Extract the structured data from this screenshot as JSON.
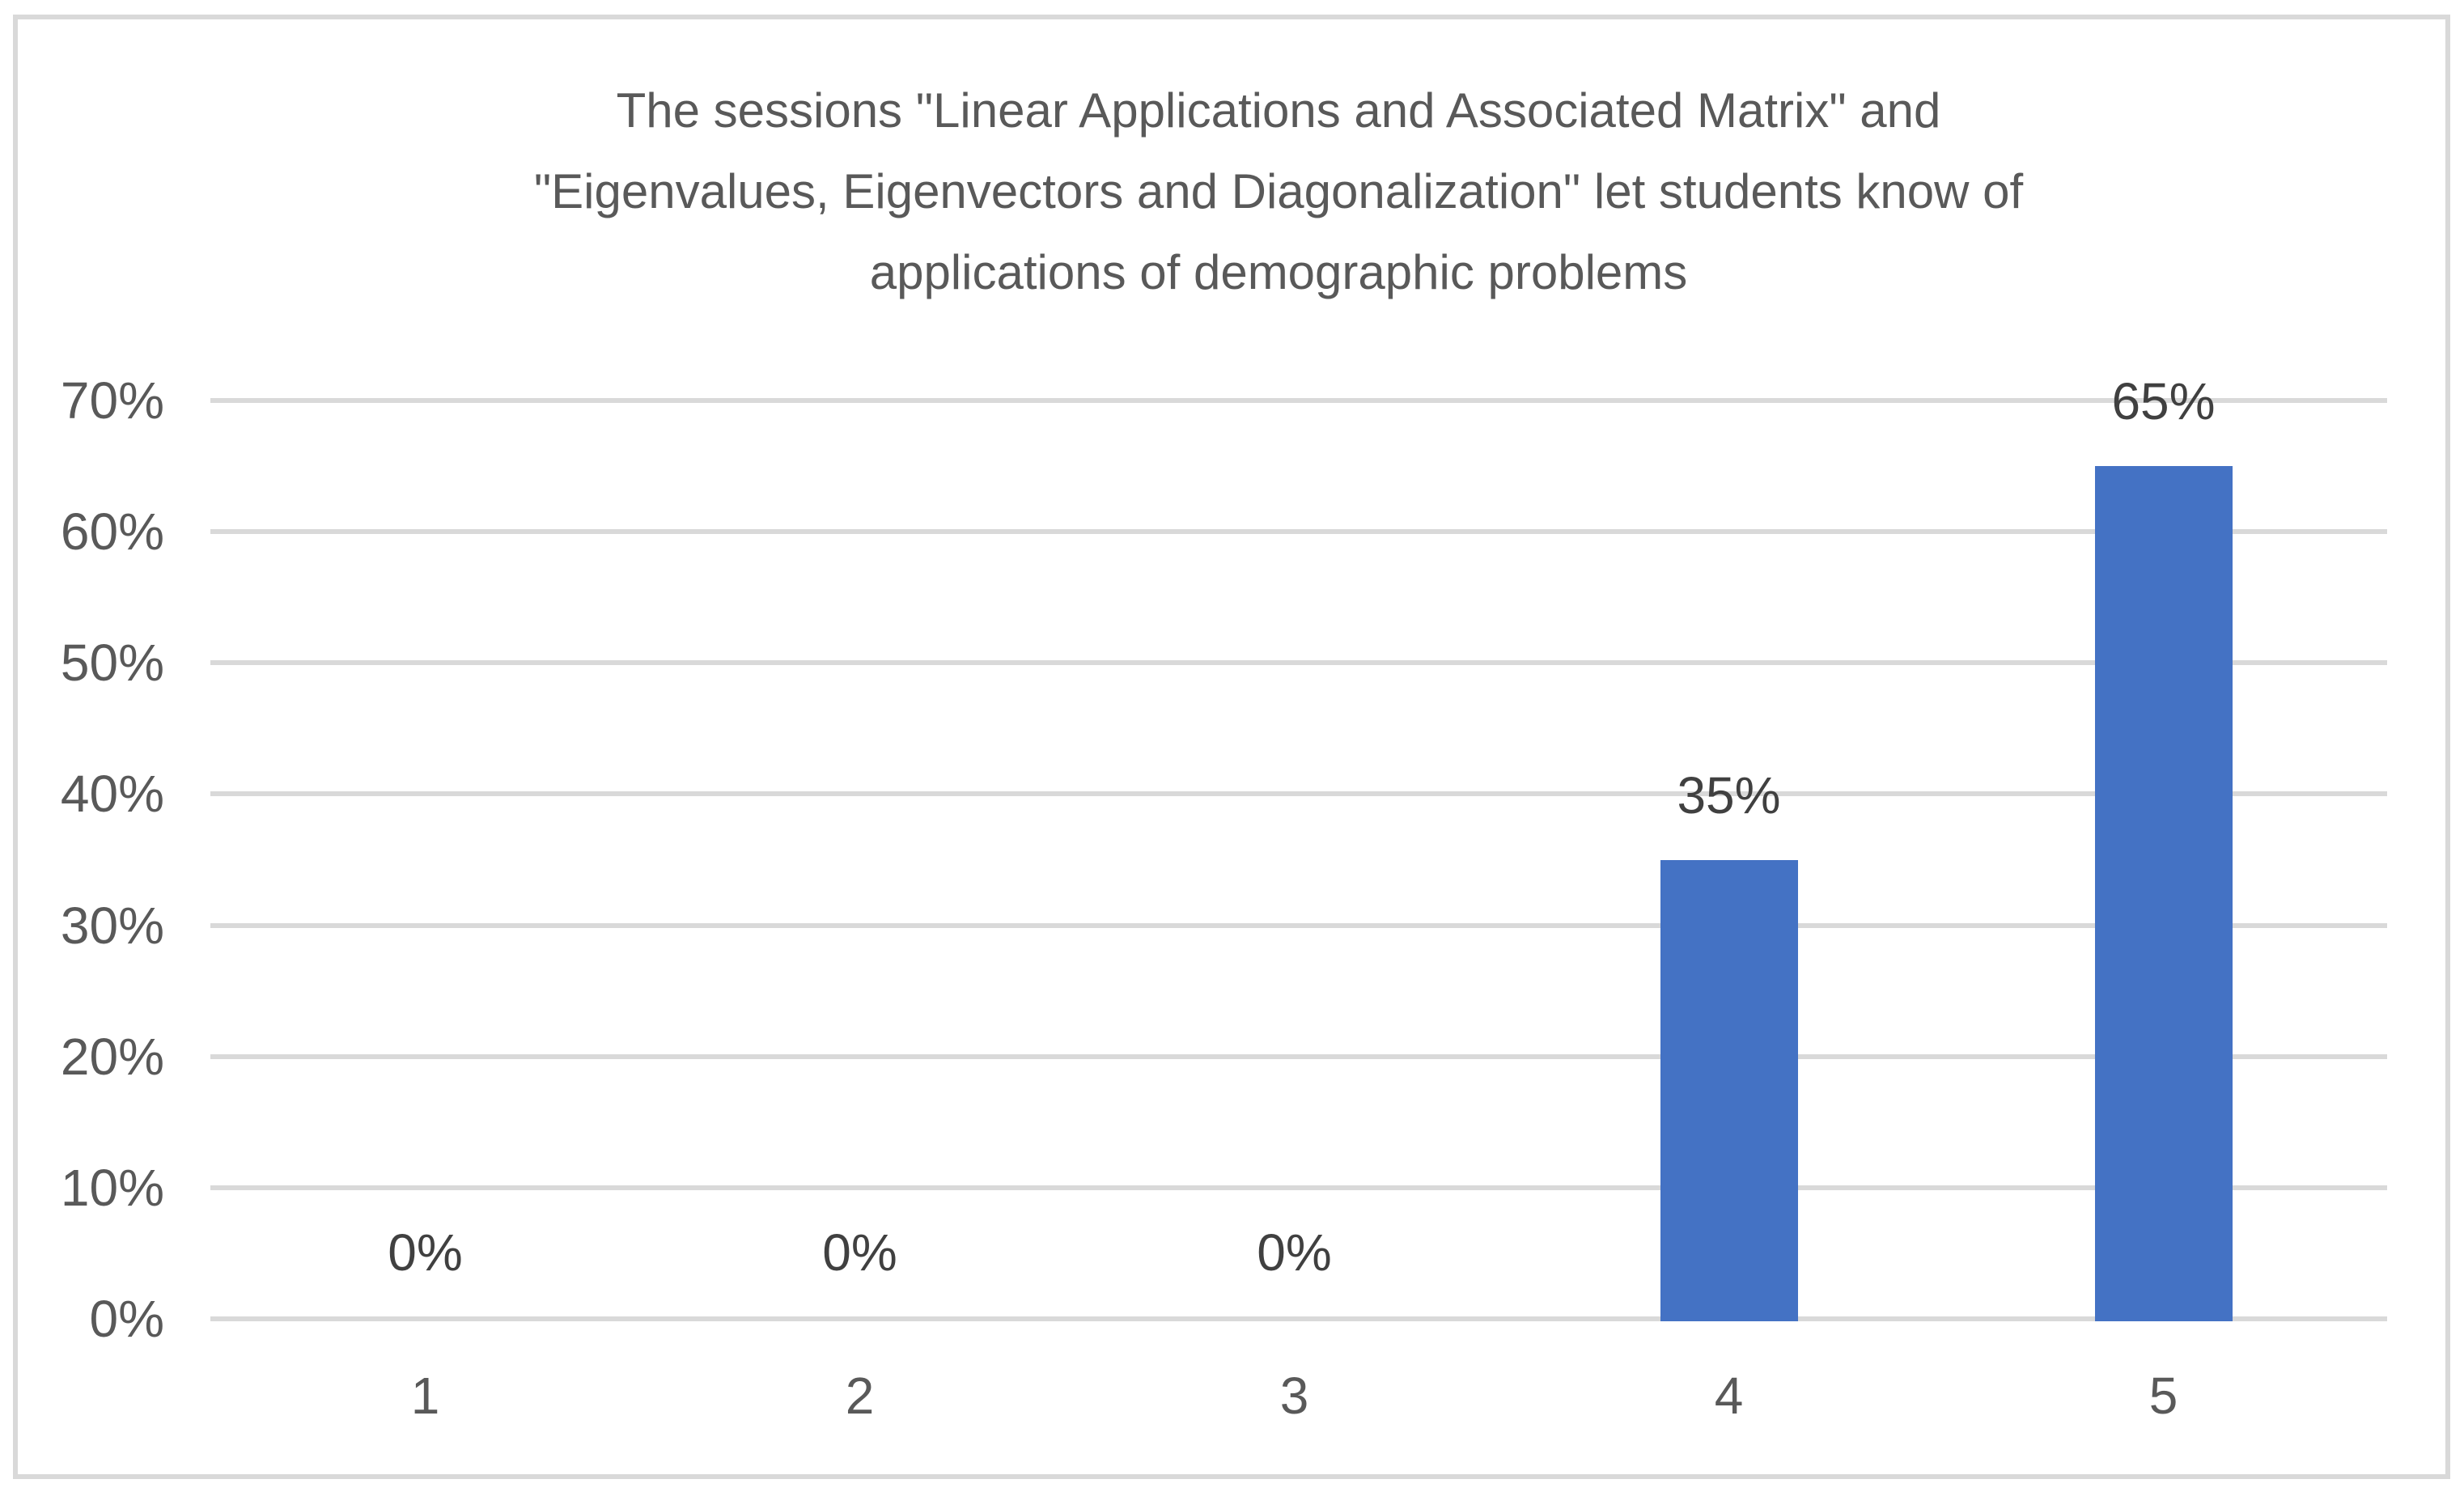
{
  "frame": {
    "border_color": "#D9D9D9",
    "background_color": "#FFFFFF"
  },
  "chart_data": {
    "type": "bar",
    "title": "The sessions \"Linear Applications and Associated Matrix\" and \"Eigenvalues, Eigenvectors and Diagonalization\" let students know of applications of demographic problems",
    "title_lines": [
      "The sessions \"Linear Applications and Associated Matrix\" and",
      "\"Eigenvalues, Eigenvectors and Diagonalization\" let students know of",
      "applications of demographic problems"
    ],
    "categories": [
      "1",
      "2",
      "3",
      "4",
      "5"
    ],
    "values": [
      0,
      0,
      0,
      35,
      65
    ],
    "data_labels": [
      "0%",
      "0%",
      "0%",
      "35%",
      "65%"
    ],
    "y_ticks": [
      "0%",
      "10%",
      "20%",
      "30%",
      "40%",
      "50%",
      "60%",
      "70%"
    ],
    "y_tick_values": [
      0,
      10,
      20,
      30,
      40,
      50,
      60,
      70
    ],
    "ylim": [
      0,
      70
    ],
    "xlabel": "",
    "ylabel": "",
    "grid": true,
    "legend": false,
    "bar_color": "#4472C4",
    "gridline_color": "#D9D9D9",
    "axis_label_color": "#595959",
    "data_label_color": "#404040",
    "title_color": "#595959"
  }
}
